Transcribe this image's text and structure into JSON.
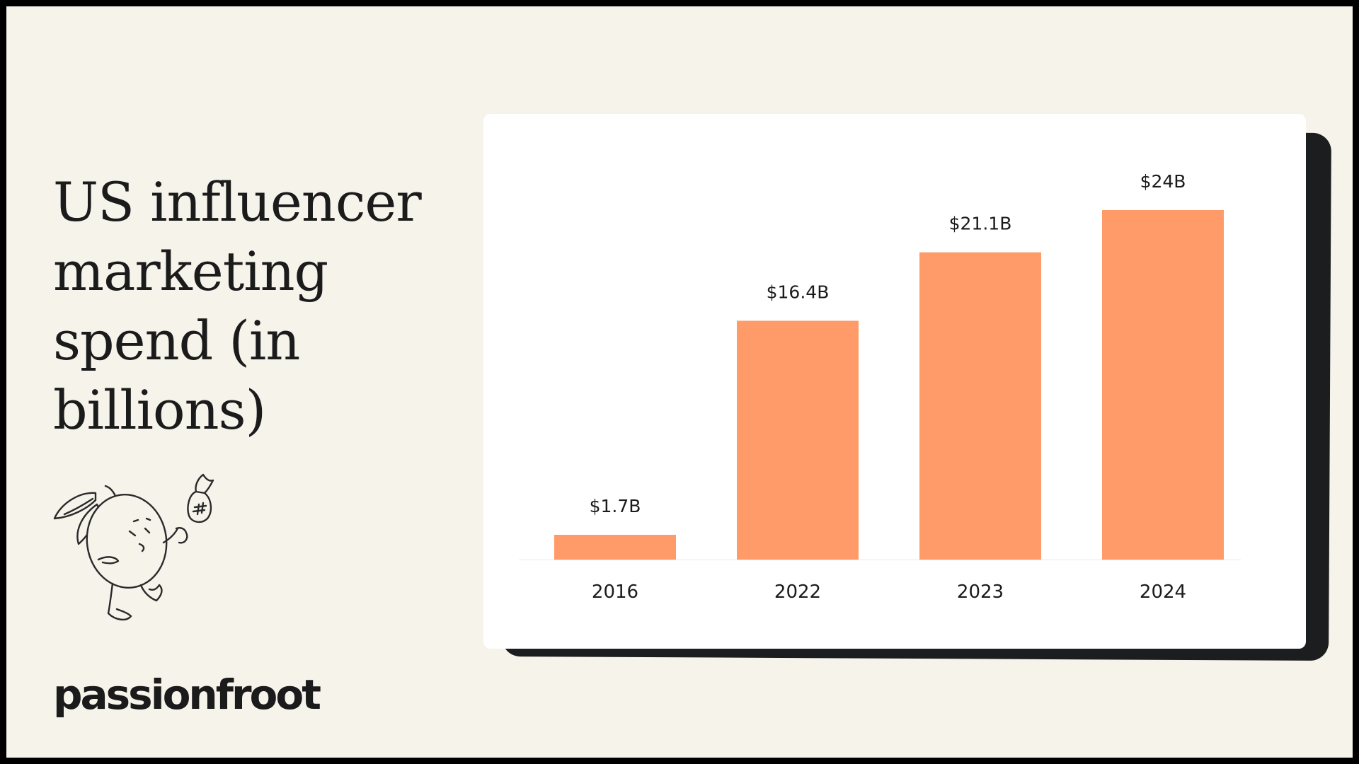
{
  "page": {
    "title": "US influencer marketing spend (in billions)",
    "logo_text": "passionfroot"
  },
  "colors": {
    "background": "#f6f3eb",
    "bar": "#ff9b68",
    "text": "#1b1b1b",
    "card_shadow": "#1c1d1f"
  },
  "icons": {
    "mascot": "passionfruit-character-with-money-bag-icon"
  },
  "chart_data": {
    "type": "bar",
    "title": "US influencer marketing spend (in billions)",
    "categories": [
      "2016",
      "2022",
      "2023",
      "2024"
    ],
    "values": [
      1.7,
      16.4,
      21.1,
      24
    ],
    "data_labels": [
      "$1.7B",
      "$16.4B",
      "$21.1B",
      "$24B"
    ],
    "xlabel": "",
    "ylabel": "",
    "grid": false,
    "legend": "none"
  }
}
